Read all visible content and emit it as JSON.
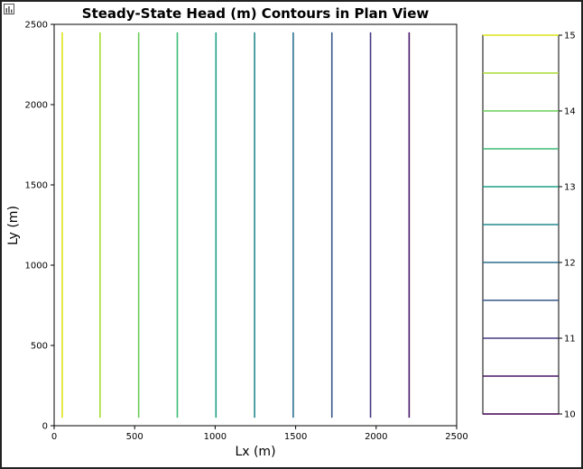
{
  "chart_data": {
    "type": "line",
    "title": "Steady-State Head (m) Contours in Plan View",
    "xlabel": "Lx (m)",
    "ylabel": "Ly (m)",
    "xlim": [
      0,
      2500
    ],
    "ylim": [
      0,
      2500
    ],
    "xticks": [
      "0",
      "500",
      "1000",
      "1500",
      "2000",
      "2500"
    ],
    "yticks": [
      "0",
      "500",
      "1000",
      "1500",
      "2000",
      "2500"
    ],
    "grid": false,
    "contours": [
      {
        "level": 14.5,
        "x": 50,
        "y_start": 50,
        "y_end": 2450,
        "color": "#dde318"
      },
      {
        "level": 14.0,
        "x": 285,
        "y_start": 50,
        "y_end": 2450,
        "color": "#a8db34"
      },
      {
        "level": 13.5,
        "x": 525,
        "y_start": 50,
        "y_end": 2450,
        "color": "#6ccd5a"
      },
      {
        "level": 13.0,
        "x": 765,
        "y_start": 50,
        "y_end": 2450,
        "color": "#3bbb75"
      },
      {
        "level": 12.5,
        "x": 1005,
        "y_start": 50,
        "y_end": 2450,
        "color": "#1fa187"
      },
      {
        "level": 12.0,
        "x": 1245,
        "y_start": 50,
        "y_end": 2450,
        "color": "#23898e"
      },
      {
        "level": 11.5,
        "x": 1485,
        "y_start": 50,
        "y_end": 2450,
        "color": "#2d718e"
      },
      {
        "level": 11.0,
        "x": 1725,
        "y_start": 50,
        "y_end": 2450,
        "color": "#38598c"
      },
      {
        "level": 10.5,
        "x": 1965,
        "y_start": 50,
        "y_end": 2450,
        "color": "#453882"
      },
      {
        "level": 10.0,
        "x": 2205,
        "y_start": 50,
        "y_end": 2450,
        "color": "#481668"
      }
    ],
    "colorbar": {
      "range": [
        10,
        15
      ],
      "ticks": [
        "10",
        "11",
        "12",
        "13",
        "14",
        "15"
      ],
      "levels": [
        10.0,
        10.5,
        11.0,
        11.5,
        12.0,
        12.5,
        13.0,
        13.5,
        14.0,
        14.5,
        15.0
      ],
      "colors": [
        "#440154",
        "#481668",
        "#453882",
        "#38598c",
        "#2d718e",
        "#23898e",
        "#1fa187",
        "#3bbb75",
        "#6ccd5a",
        "#a8db34",
        "#dde318"
      ]
    }
  }
}
